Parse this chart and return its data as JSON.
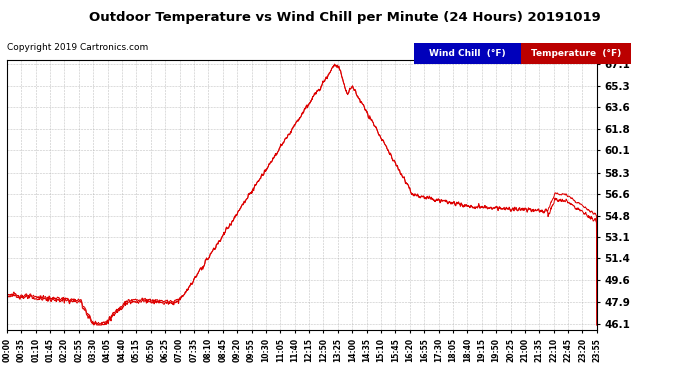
{
  "title": "Outdoor Temperature vs Wind Chill per Minute (24 Hours) 20191019",
  "copyright": "Copyright 2019 Cartronics.com",
  "ylabel_values": [
    46.1,
    47.9,
    49.6,
    51.4,
    53.1,
    54.8,
    56.6,
    58.3,
    60.1,
    61.8,
    63.6,
    65.3,
    67.1
  ],
  "ymin": 46.1,
  "ymax": 67.1,
  "temp_color": "#dd0000",
  "wind_chill_color": "#dd0000",
  "bg_color": "#ffffff",
  "grid_color": "#aaaaaa",
  "legend_wind_bg": "#0000bb",
  "legend_temp_bg": "#bb0000",
  "x_tick_labels": [
    "00:00",
    "00:35",
    "01:10",
    "01:45",
    "02:20",
    "02:55",
    "03:30",
    "04:05",
    "04:40",
    "05:15",
    "05:50",
    "06:25",
    "07:00",
    "07:35",
    "08:10",
    "08:45",
    "09:20",
    "09:55",
    "10:30",
    "11:05",
    "11:40",
    "12:15",
    "12:50",
    "13:25",
    "14:00",
    "14:35",
    "15:10",
    "15:45",
    "16:20",
    "16:55",
    "17:30",
    "18:05",
    "18:40",
    "19:15",
    "19:50",
    "20:25",
    "21:00",
    "21:35",
    "22:10",
    "22:45",
    "23:20",
    "23:55"
  ]
}
